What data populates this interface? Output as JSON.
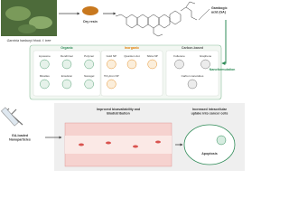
{
  "source": {
    "caption": [
      "Garcinia hanburyi Hook. f. tree"
    ],
    "resin": "Dry resin",
    "compound": [
      "Gambogic",
      "acid (GA)"
    ]
  },
  "nanoformulation": {
    "label": "Nanoformulation",
    "groups": [
      {
        "title": "Organic",
        "items": [
          "Liposome",
          "Dendrimer",
          "Polymer",
          "Micelles",
          "Emulsion",
          "Nanogel"
        ]
      },
      {
        "title": "Inorganic",
        "items": [
          "Gold NP",
          "Quantum dot",
          "Silica NP",
          "TiO₂/iron NP"
        ]
      },
      {
        "title": "Carbon-based",
        "items": [
          "Fullerene",
          "Graphene",
          "Carbon nanotubes"
        ]
      }
    ]
  },
  "outcomes": {
    "carrier": [
      "GA-loaded",
      "Nanoparticles"
    ],
    "bioavailability": [
      "Improved bioavailability and",
      "Biodistribution"
    ],
    "uptake": [
      "Increased intracellular",
      "uptake into cancer cells"
    ],
    "apoptosis": "Apoptosis"
  }
}
